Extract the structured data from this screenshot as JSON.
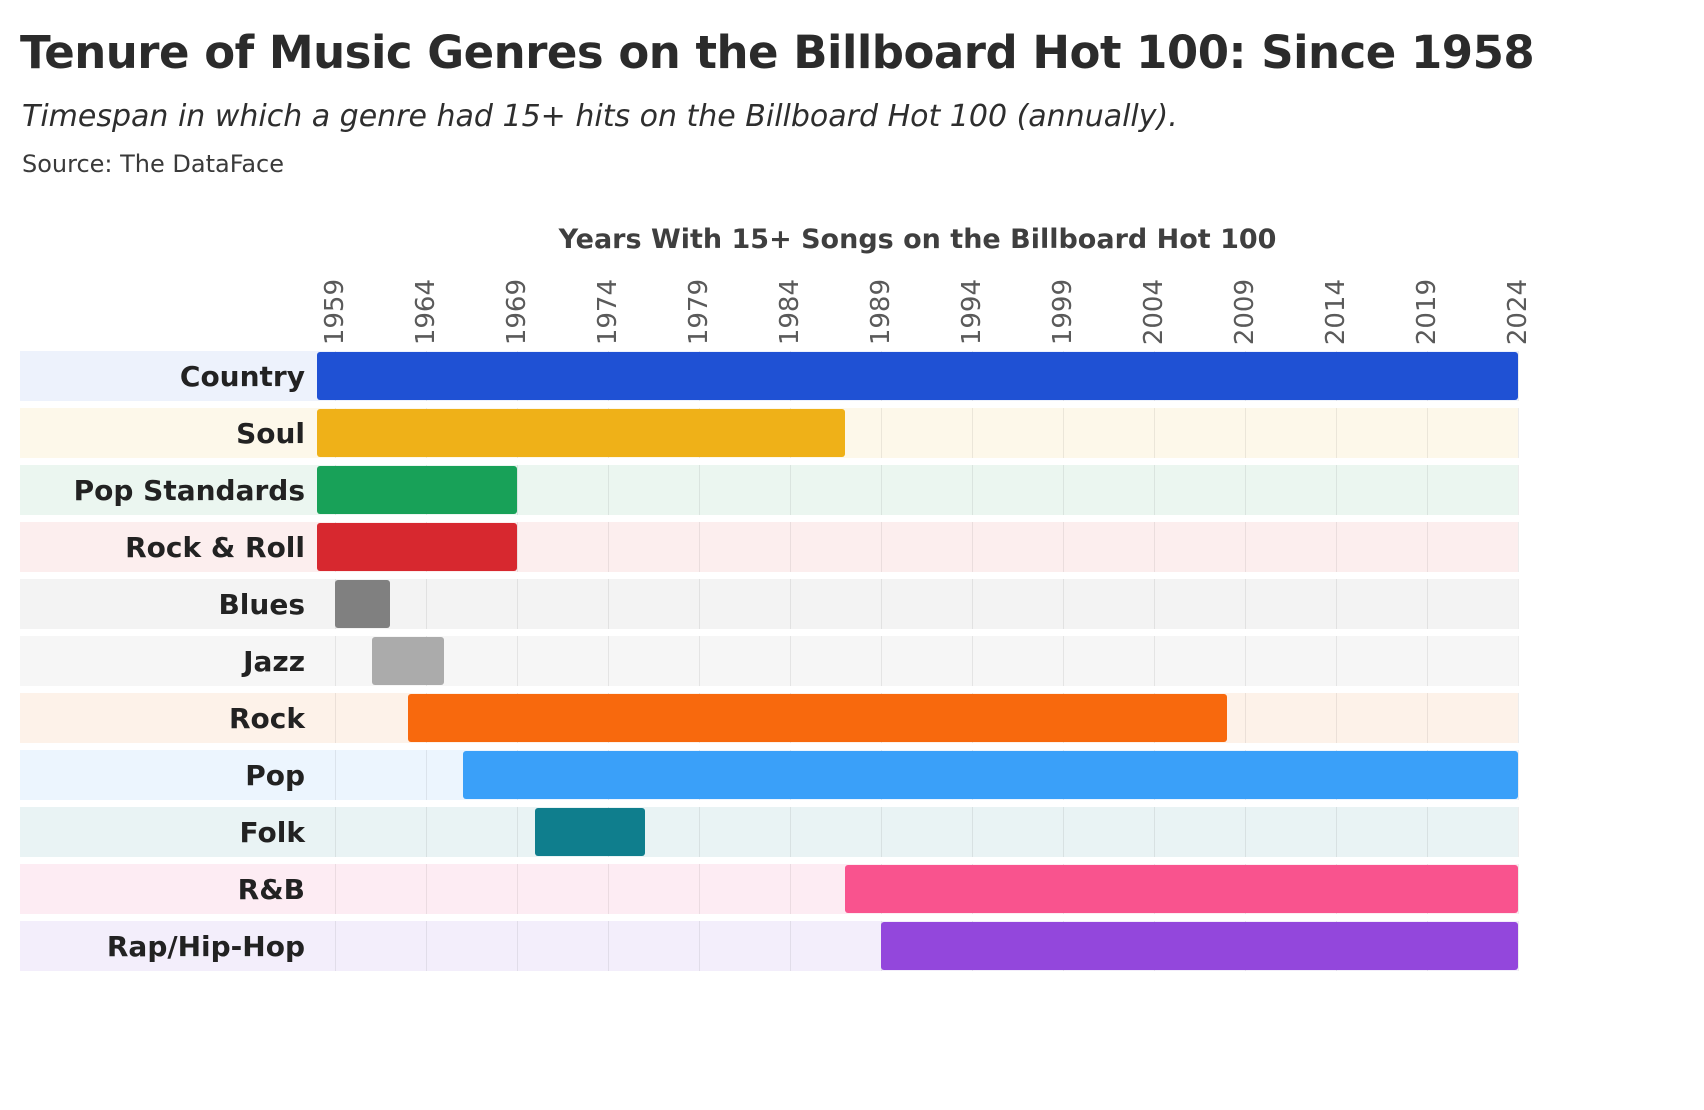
{
  "header": {
    "title": "Tenure of Music Genres on the Billboard Hot 100: Since 1958",
    "subtitle": "Timespan in which a genre had 15+ hits on the Billboard Hot 100 (annually).",
    "source": "Source: The DataFace"
  },
  "chart_data": {
    "type": "bar",
    "variant": "timeline-range",
    "axis_title": "Years With 15+ Songs on the Billboard Hot 100",
    "x_domain": [
      1958,
      2024
    ],
    "ticks": [
      1959,
      1964,
      1969,
      1974,
      1979,
      1984,
      1989,
      1994,
      1999,
      2004,
      2009,
      2014,
      2019,
      2024
    ],
    "grid": true,
    "legend": "none",
    "series": [
      {
        "genre": "Country",
        "start": 1958,
        "end": 2024,
        "color": "#1f51d4",
        "tint": "#edf2fc"
      },
      {
        "genre": "Soul",
        "start": 1958,
        "end": 1987,
        "color": "#efb118",
        "tint": "#fdf8ea"
      },
      {
        "genre": "Pop Standards",
        "start": 1958,
        "end": 1969,
        "color": "#18a158",
        "tint": "#ebf6f0"
      },
      {
        "genre": "Rock & Roll",
        "start": 1958,
        "end": 1969,
        "color": "#d7282f",
        "tint": "#fceeee"
      },
      {
        "genre": "Blues",
        "start": 1959,
        "end": 1962,
        "color": "#808080",
        "tint": "#f3f3f3"
      },
      {
        "genre": "Jazz",
        "start": 1961,
        "end": 1965,
        "color": "#ababab",
        "tint": "#f6f6f6"
      },
      {
        "genre": "Rock",
        "start": 1963,
        "end": 2008,
        "color": "#f8690d",
        "tint": "#fdf2e9"
      },
      {
        "genre": "Pop",
        "start": 1966,
        "end": 2024,
        "color": "#3aa0f9",
        "tint": "#ecf5fe"
      },
      {
        "genre": "Folk",
        "start": 1970,
        "end": 1976,
        "color": "#0f7e8d",
        "tint": "#e9f3f4"
      },
      {
        "genre": "R&B",
        "start": 1987,
        "end": 2024,
        "color": "#f9538e",
        "tint": "#fdecf3"
      },
      {
        "genre": "Rap/Hip-Hop",
        "start": 1989,
        "end": 2024,
        "color": "#9347dc",
        "tint": "#f3eefb"
      }
    ]
  }
}
